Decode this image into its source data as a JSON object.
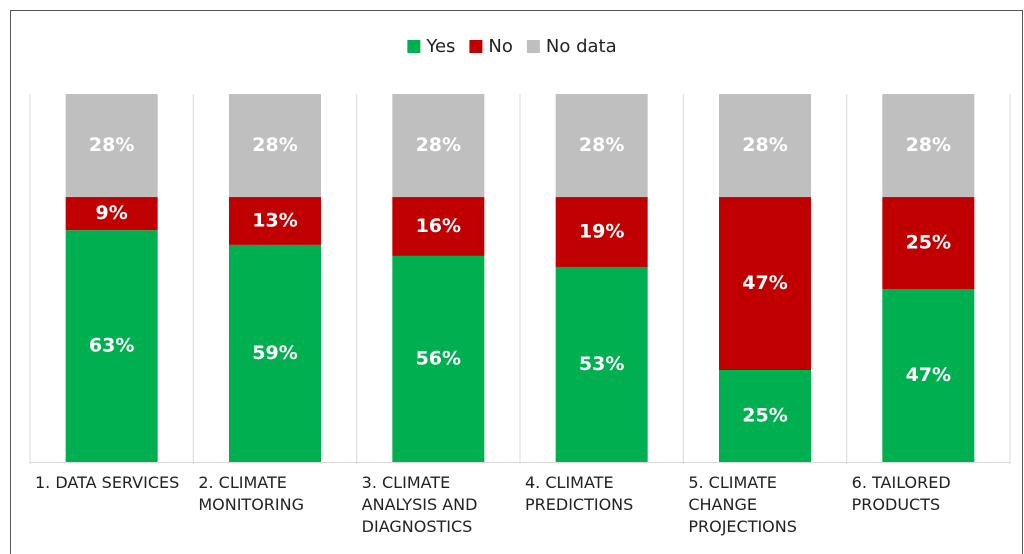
{
  "chart_data": {
    "type": "stacked_bar",
    "categories": [
      "1. DATA SERVICES",
      "2. CLIMATE MONITORING",
      "3. CLIMATE ANALYSIS AND DIAGNOSTICS",
      "4. CLIMATE PREDICTIONS",
      "5. CLIMATE CHANGE PROJECTIONS",
      "6. TAILORED PRODUCTS"
    ],
    "series": [
      {
        "name": "Yes",
        "color": "#00b050",
        "values": [
          63,
          59,
          56,
          53,
          25,
          47
        ],
        "value_labels": [
          "63%",
          "59%",
          "56%",
          "53%",
          "25%",
          "47%"
        ]
      },
      {
        "name": "No",
        "color": "#c00000",
        "values": [
          9,
          13,
          16,
          19,
          47,
          25
        ],
        "value_labels": [
          "9%",
          "13%",
          "16%",
          "19%",
          "47%",
          "25%"
        ]
      },
      {
        "name": "No data",
        "color": "#bfbfbf",
        "values": [
          28,
          28,
          28,
          28,
          28,
          28
        ],
        "value_labels": [
          "28%",
          "28%",
          "28%",
          "28%",
          "28%",
          "28%"
        ]
      }
    ],
    "legend": "top"
  }
}
